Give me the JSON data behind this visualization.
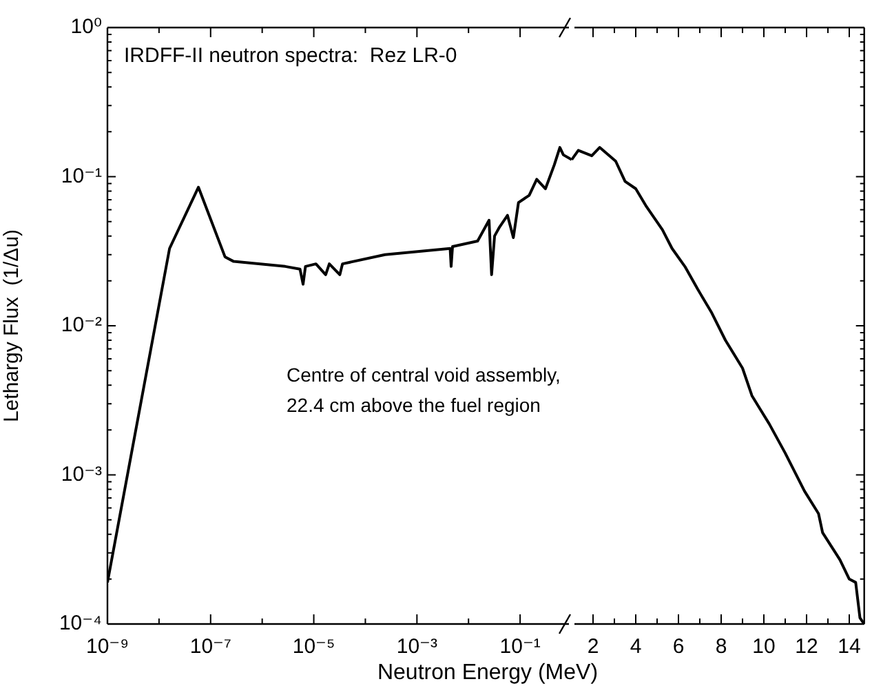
{
  "chart_data": [
    {
      "type": "line",
      "title": "IRDFF-II neutron spectra:  Rez LR-0",
      "xlabel": "Neutron Energy  (MeV)",
      "ylabel": "Lethargy Flux  (1/Δu)",
      "log": "xy",
      "legend": false,
      "color": "#000000",
      "annotations": [
        "Centre of central void assembly,\n22.4 cm above the fuel region"
      ],
      "x": [
        1e-09,
        1.6e-08,
        5.8e-08,
        1.9e-07,
        2.8e-07,
        2.8e-06,
        5.4e-06,
        6.2e-06,
        6.9e-06,
        1.1e-05,
        1.7e-05,
        2e-05,
        3.2e-05,
        3.6e-05,
        0.00024,
        0.0044,
        0.0046,
        0.0049,
        0.015,
        0.025,
        0.028,
        0.032,
        0.04,
        0.057,
        0.074,
        0.093,
        0.15,
        0.21,
        0.31,
        0.46,
        0.59,
        0.69,
        1.0
      ],
      "values": [
        0.00019,
        0.033,
        0.085,
        0.029,
        0.027,
        0.025,
        0.024,
        0.019,
        0.025,
        0.026,
        0.022,
        0.026,
        0.022,
        0.026,
        0.03,
        0.033,
        0.025,
        0.034,
        0.037,
        0.051,
        0.022,
        0.04,
        0.046,
        0.055,
        0.039,
        0.067,
        0.075,
        0.096,
        0.083,
        0.12,
        0.157,
        0.14,
        0.13
      ],
      "xlim": [
        1e-09,
        1
      ],
      "xticks": [
        {
          "value": 1e-09,
          "label": "10⁻⁹"
        },
        {
          "value": 1e-08,
          "label": null
        },
        {
          "value": 1e-07,
          "label": "10⁻⁷"
        },
        {
          "value": 1e-06,
          "label": null
        },
        {
          "value": 1e-05,
          "label": "10⁻⁵"
        },
        {
          "value": 0.0001,
          "label": null
        },
        {
          "value": 0.001,
          "label": "10⁻³"
        },
        {
          "value": 0.01,
          "label": null
        },
        {
          "value": 0.1,
          "label": "10⁻¹"
        }
      ],
      "ylim": [
        0.0001,
        1
      ],
      "yticks": [
        {
          "value": 0.0001,
          "label": "10⁻⁴"
        },
        {
          "value": 0.0002,
          "label": null
        },
        {
          "value": 0.0003,
          "label": null
        },
        {
          "value": 0.0004,
          "label": null
        },
        {
          "value": 0.0005,
          "label": null
        },
        {
          "value": 0.0006,
          "label": null
        },
        {
          "value": 0.0007,
          "label": null
        },
        {
          "value": 0.0008,
          "label": null
        },
        {
          "value": 0.0009,
          "label": null
        },
        {
          "value": 0.001,
          "label": "10⁻³"
        },
        {
          "value": 0.002,
          "label": null
        },
        {
          "value": 0.003,
          "label": null
        },
        {
          "value": 0.004,
          "label": null
        },
        {
          "value": 0.005,
          "label": null
        },
        {
          "value": 0.006,
          "label": null
        },
        {
          "value": 0.007,
          "label": null
        },
        {
          "value": 0.008,
          "label": null
        },
        {
          "value": 0.009,
          "label": null
        },
        {
          "value": 0.01,
          "label": "10⁻²"
        },
        {
          "value": 0.02,
          "label": null
        },
        {
          "value": 0.03,
          "label": null
        },
        {
          "value": 0.04,
          "label": null
        },
        {
          "value": 0.05,
          "label": null
        },
        {
          "value": 0.06,
          "label": null
        },
        {
          "value": 0.07,
          "label": null
        },
        {
          "value": 0.08,
          "label": null
        },
        {
          "value": 0.09,
          "label": null
        },
        {
          "value": 0.1,
          "label": "10⁻¹"
        },
        {
          "value": 0.2,
          "label": null
        },
        {
          "value": 0.3,
          "label": null
        },
        {
          "value": 0.4,
          "label": null
        },
        {
          "value": 0.5,
          "label": null
        },
        {
          "value": 0.6,
          "label": null
        },
        {
          "value": 0.7,
          "label": null
        },
        {
          "value": 0.8,
          "label": null
        },
        {
          "value": 0.9,
          "label": null
        },
        {
          "value": 1,
          "label": "10⁰"
        }
      ]
    },
    {
      "type": "line",
      "log": "y",
      "legend": false,
      "color": "#000000",
      "tick_labels": "x",
      "x": [
        1.0,
        1.31,
        1.94,
        2.31,
        3.06,
        3.5,
        4.0,
        4.5,
        5.25,
        5.7,
        6.3,
        6.9,
        7.56,
        8.2,
        9.0,
        9.44,
        9.8,
        10.25,
        11.0,
        11.9,
        12.56,
        12.75,
        13.56,
        14.0,
        14.3,
        14.5,
        14.7
      ],
      "values": [
        0.13,
        0.15,
        0.138,
        0.157,
        0.127,
        0.093,
        0.083,
        0.063,
        0.044,
        0.033,
        0.025,
        0.0176,
        0.0122,
        0.008,
        0.0052,
        0.0034,
        0.0028,
        0.0022,
        0.0014,
        0.00078,
        0.00055,
        0.00041,
        0.00027,
        0.0002,
        0.00019,
        0.00011,
        0.0001
      ],
      "xlim": [
        1,
        14.7
      ],
      "xticks": [
        {
          "value": 2,
          "label": "2"
        },
        {
          "value": 3,
          "label": null
        },
        {
          "value": 4,
          "label": "4"
        },
        {
          "value": 5,
          "label": null
        },
        {
          "value": 6,
          "label": "6"
        },
        {
          "value": 7,
          "label": null
        },
        {
          "value": 8,
          "label": "8"
        },
        {
          "value": 9,
          "label": null
        },
        {
          "value": 10,
          "label": "10"
        },
        {
          "value": 11,
          "label": null
        },
        {
          "value": 12,
          "label": "12"
        },
        {
          "value": 13,
          "label": null
        },
        {
          "value": 14,
          "label": "14"
        }
      ],
      "ylim": [
        0.0001,
        1
      ],
      "yticks": [
        {
          "value": 0.0001,
          "label": null
        },
        {
          "value": 0.0002,
          "label": null
        },
        {
          "value": 0.0003,
          "label": null
        },
        {
          "value": 0.0004,
          "label": null
        },
        {
          "value": 0.0005,
          "label": null
        },
        {
          "value": 0.0006,
          "label": null
        },
        {
          "value": 0.0007,
          "label": null
        },
        {
          "value": 0.0008,
          "label": null
        },
        {
          "value": 0.0009,
          "label": null
        },
        {
          "value": 0.001,
          "label": null
        },
        {
          "value": 0.002,
          "label": null
        },
        {
          "value": 0.003,
          "label": null
        },
        {
          "value": 0.004,
          "label": null
        },
        {
          "value": 0.005,
          "label": null
        },
        {
          "value": 0.006,
          "label": null
        },
        {
          "value": 0.007,
          "label": null
        },
        {
          "value": 0.008,
          "label": null
        },
        {
          "value": 0.009,
          "label": null
        },
        {
          "value": 0.01,
          "label": null
        },
        {
          "value": 0.02,
          "label": null
        },
        {
          "value": 0.03,
          "label": null
        },
        {
          "value": 0.04,
          "label": null
        },
        {
          "value": 0.05,
          "label": null
        },
        {
          "value": 0.06,
          "label": null
        },
        {
          "value": 0.07,
          "label": null
        },
        {
          "value": 0.08,
          "label": null
        },
        {
          "value": 0.09,
          "label": null
        },
        {
          "value": 0.1,
          "label": null
        },
        {
          "value": 0.2,
          "label": null
        },
        {
          "value": 0.3,
          "label": null
        },
        {
          "value": 0.4,
          "label": null
        },
        {
          "value": 0.5,
          "label": null
        },
        {
          "value": 0.6,
          "label": null
        },
        {
          "value": 0.7,
          "label": null
        },
        {
          "value": 0.8,
          "label": null
        },
        {
          "value": 0.9,
          "label": null
        },
        {
          "value": 1,
          "label": null
        }
      ]
    }
  ]
}
